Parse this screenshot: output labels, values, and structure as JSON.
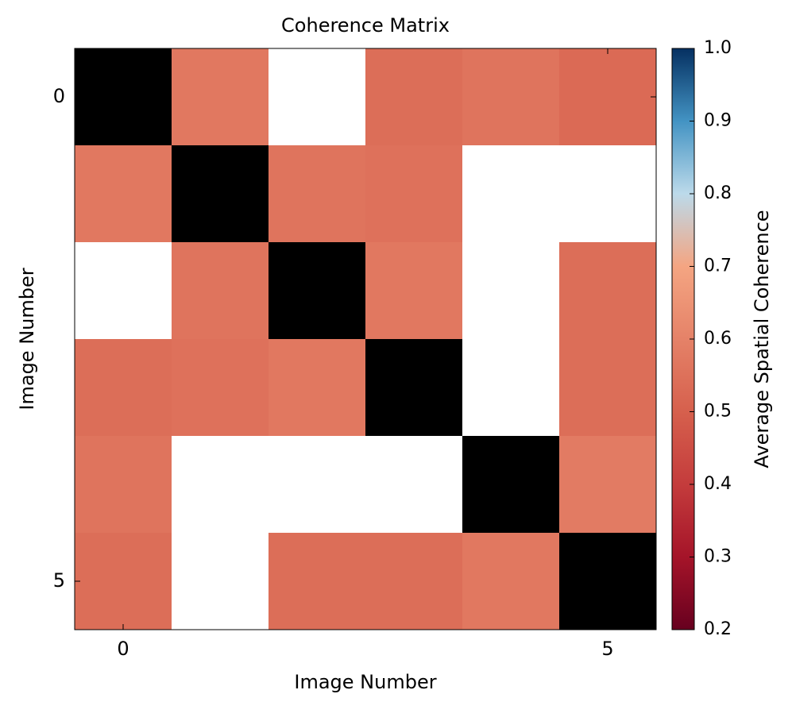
{
  "chart_data": {
    "type": "heatmap",
    "title": "Coherence Matrix",
    "x_label": "Image Number",
    "y_label": "Image Number",
    "colorbar_label": "Average Spatial Coherence",
    "values": [
      [
        null,
        0.57,
        null,
        0.54,
        0.56,
        0.53
      ],
      [
        0.57,
        null,
        0.56,
        0.55,
        null,
        null
      ],
      [
        null,
        0.56,
        null,
        0.57,
        null,
        0.54
      ],
      [
        0.54,
        0.55,
        0.57,
        null,
        null,
        0.54
      ],
      [
        0.56,
        null,
        null,
        null,
        null,
        0.58
      ],
      [
        0.54,
        null,
        0.54,
        0.54,
        0.57,
        null
      ]
    ],
    "xlim": [
      -0.5,
      5.5
    ],
    "ylim": [
      5.5,
      -0.5
    ],
    "xticks": [
      0,
      5
    ],
    "yticks": [
      0,
      5
    ],
    "clim": [
      0.2,
      1.0
    ],
    "cticks": [
      0.2,
      0.3,
      0.4,
      0.5,
      0.6,
      0.7,
      0.8,
      0.9,
      {
        "value": 1.0,
        "label": "1.0"
      }
    ],
    "colormap": [
      "#67001f",
      "#a51429",
      "#c43c3c",
      "#d6604d",
      "#e58268",
      "#f4a582",
      "#bcdaea",
      "#4393c3",
      "#053061"
    ],
    "diagonal_color": "#000000",
    "missing_color": "#ffffff"
  }
}
